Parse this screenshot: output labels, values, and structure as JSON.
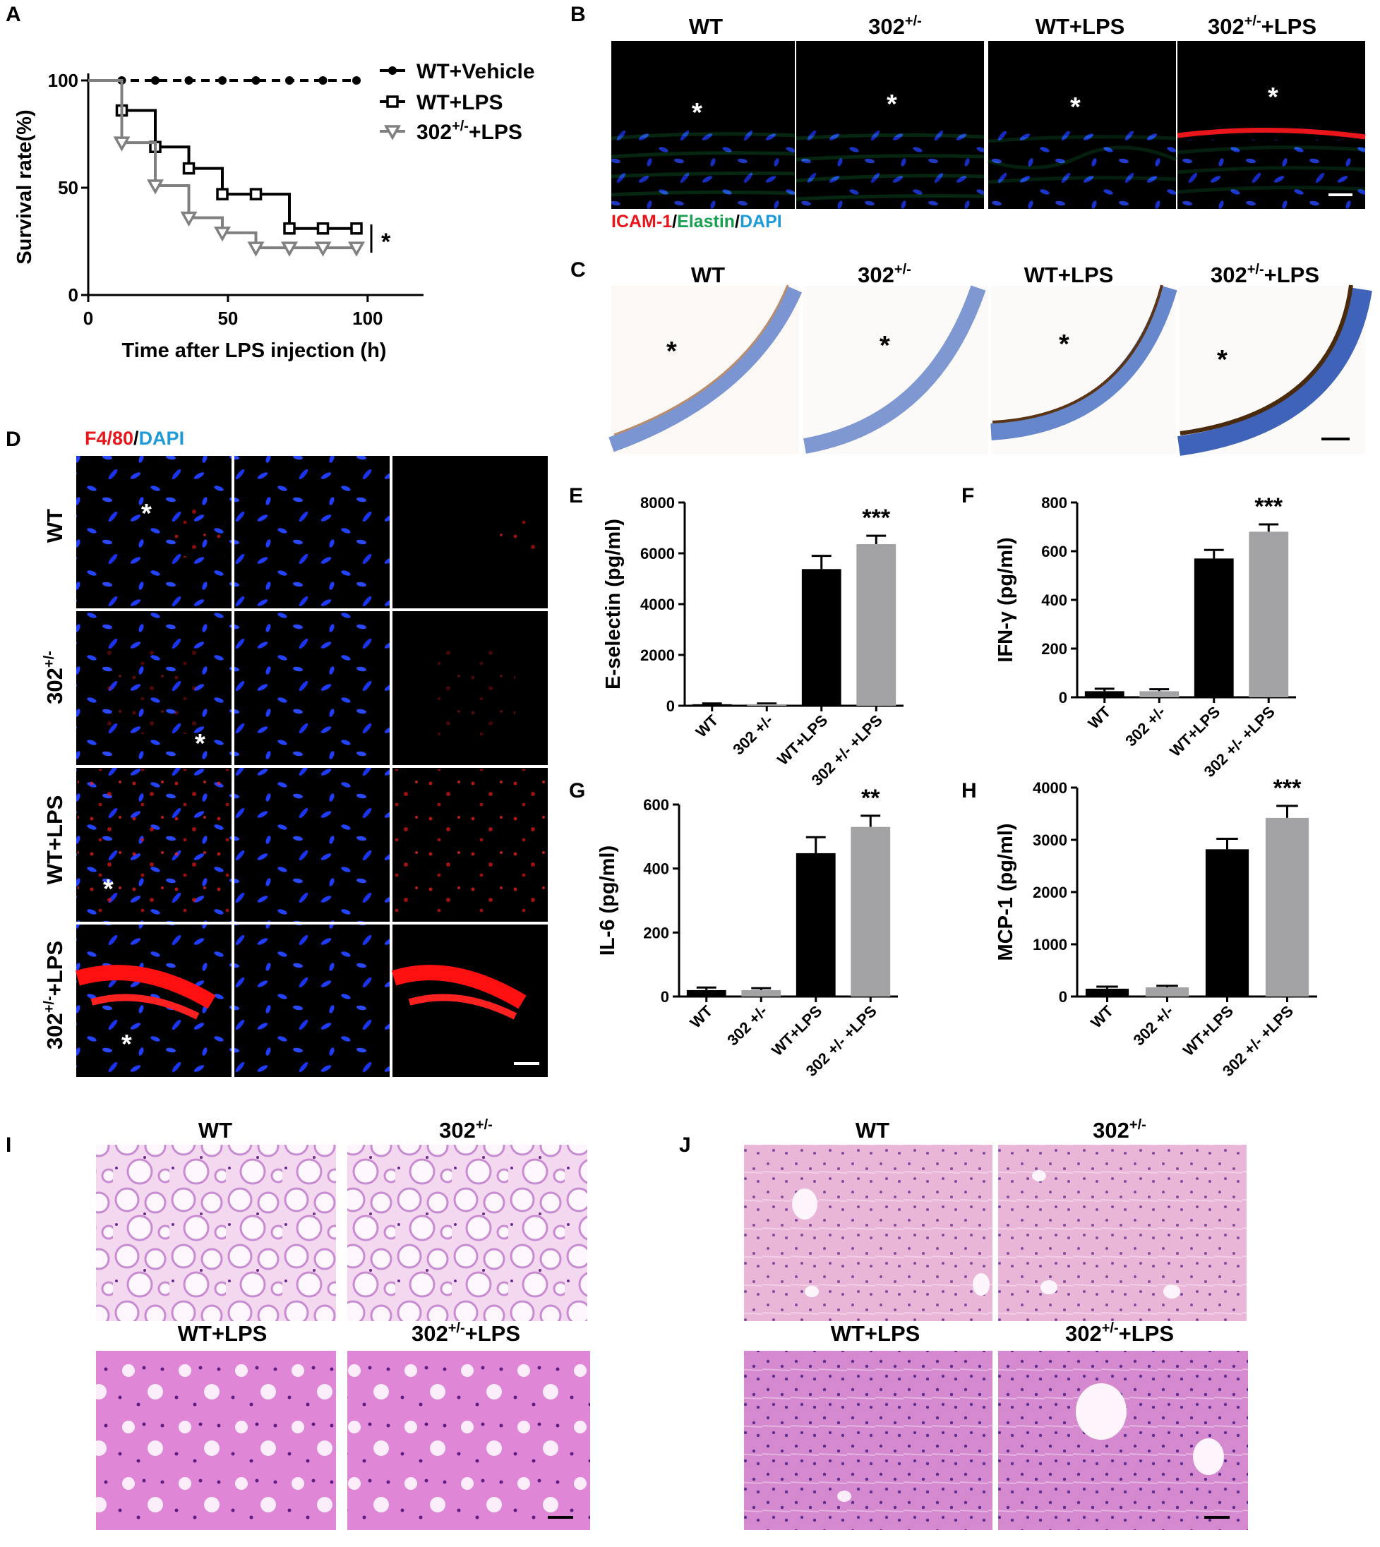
{
  "panels": {
    "A": {
      "letter": "A",
      "sig": "*",
      "chart_data": {
        "type": "line",
        "xlabel": "Time after LPS injection (h)",
        "ylabel": "Survival rate(%)",
        "xlim": [
          0,
          120
        ],
        "ylim": [
          0,
          100
        ],
        "xticks": [
          "0",
          "50",
          "100"
        ],
        "yticks": [
          "0",
          "50",
          "100"
        ],
        "legend_position": "top-right",
        "series": [
          {
            "name": "WT+Vehicle",
            "color": "#000000",
            "style": "dashed",
            "marker": "circle",
            "x": [
              0,
              12,
              24,
              36,
              48,
              60,
              72,
              84,
              96
            ],
            "y": [
              100,
              100,
              100,
              100,
              100,
              100,
              100,
              100,
              100
            ]
          },
          {
            "name": "WT+LPS",
            "color": "#000000",
            "style": "step",
            "marker": "square",
            "x": [
              0,
              12,
              24,
              36,
              48,
              60,
              72,
              84,
              96
            ],
            "y": [
              100,
              86,
              69,
              59,
              47,
              47,
              31,
              31,
              31
            ]
          },
          {
            "name": "302",
            "name_sup": "+/-",
            "name_suffix": "+LPS",
            "color": "#808080",
            "style": "step",
            "marker": "triangle-down",
            "x": [
              0,
              12,
              24,
              36,
              48,
              60,
              72,
              84,
              96
            ],
            "y": [
              100,
              71,
              51,
              36,
              29,
              22,
              22,
              22,
              22
            ]
          }
        ]
      }
    },
    "B": {
      "letter": "B",
      "labels": [
        {
          "main": "WT",
          "sup": ""
        },
        {
          "main": "302",
          "sup": "+/-"
        },
        {
          "main": "WT+LPS",
          "sup": ""
        },
        {
          "main": "302",
          "sup": "+/-",
          "suffix": "+LPS"
        }
      ],
      "stain": {
        "icam": "ICAM-1",
        "sep1": "/",
        "elastin": "Elastin",
        "sep2": "/",
        "dapi": "DAPI"
      },
      "asterisk": "*"
    },
    "C": {
      "letter": "C",
      "labels": [
        {
          "main": "WT",
          "sup": ""
        },
        {
          "main": "302",
          "sup": "+/-"
        },
        {
          "main": "WT+LPS",
          "sup": ""
        },
        {
          "main": "302",
          "sup": "+/-",
          "suffix": "+LPS"
        }
      ],
      "asterisk": "*"
    },
    "D": {
      "letter": "D",
      "stain": {
        "f480": "F4/80",
        "sep": "/",
        "dapi": "DAPI"
      },
      "rows": [
        {
          "main": "WT",
          "sup": ""
        },
        {
          "main": "302",
          "sup": "+/-"
        },
        {
          "main": "WT+LPS",
          "sup": ""
        },
        {
          "main": "302",
          "sup": "+/-",
          "suffix": "+LPS"
        }
      ],
      "asterisk": "*"
    },
    "E": {
      "letter": "E",
      "sig": "***",
      "chart_data": {
        "type": "bar",
        "ylabel": "E-selectin (pg/ml)",
        "ylim": [
          0,
          8000
        ],
        "yticks": [
          "0",
          "2000",
          "4000",
          "6000",
          "8000"
        ],
        "categories": [
          "WT",
          "302 +/-",
          "WT+LPS",
          "302 +/- +LPS"
        ],
        "values": [
          60,
          60,
          5380,
          6360
        ],
        "errors": [
          30,
          30,
          520,
          330
        ]
      }
    },
    "F": {
      "letter": "F",
      "sig": "***",
      "chart_data": {
        "type": "bar",
        "ylabel": "IFN-γ (pg/ml)",
        "ylim": [
          0,
          800
        ],
        "yticks": [
          "0",
          "200",
          "400",
          "600",
          "800"
        ],
        "categories": [
          "WT",
          "302 +/-",
          "WT+LPS",
          "302 +/- +LPS"
        ],
        "values": [
          25,
          25,
          570,
          680
        ],
        "errors": [
          10,
          8,
          35,
          30
        ]
      }
    },
    "G": {
      "letter": "G",
      "sig": "**",
      "chart_data": {
        "type": "bar",
        "ylabel": "IL-6 (pg/ml)",
        "ylim": [
          0,
          600
        ],
        "yticks": [
          "0",
          "200",
          "400",
          "600"
        ],
        "categories": [
          "WT",
          "302 +/-",
          "WT+LPS",
          "302 +/- +LPS"
        ],
        "values": [
          20,
          20,
          448,
          530
        ],
        "errors": [
          8,
          6,
          50,
          35
        ]
      }
    },
    "H": {
      "letter": "H",
      "sig": "***",
      "chart_data": {
        "type": "bar",
        "ylabel": "MCP-1 (pg/ml)",
        "ylim": [
          0,
          4000
        ],
        "yticks": [
          "0",
          "1000",
          "2000",
          "3000",
          "4000"
        ],
        "categories": [
          "WT",
          "302 +/-",
          "WT+LPS",
          "302 +/- +LPS"
        ],
        "values": [
          150,
          175,
          2820,
          3420
        ],
        "errors": [
          40,
          30,
          200,
          230
        ]
      }
    },
    "I": {
      "letter": "I",
      "labels": [
        {
          "main": "WT",
          "sup": ""
        },
        {
          "main": "302",
          "sup": "+/-"
        },
        {
          "main": "WT+LPS",
          "sup": ""
        },
        {
          "main": "302",
          "sup": "+/-",
          "suffix": "+LPS"
        }
      ]
    },
    "J": {
      "letter": "J",
      "labels": [
        {
          "main": "WT",
          "sup": ""
        },
        {
          "main": "302",
          "sup": "+/-"
        },
        {
          "main": "WT+LPS",
          "sup": ""
        },
        {
          "main": "302",
          "sup": "+/-",
          "suffix": "+LPS"
        }
      ]
    }
  },
  "colors": {
    "black_bar": "#000000",
    "gray_bar": "#a3a3a6",
    "icam_red": "#e8161b",
    "elastin_green": "#1aa051",
    "dapi_blue": "#1f9ad8",
    "he_pink": "#e6b3e0",
    "he_purple": "#9a4bb0",
    "ihc_blue": "#6f8fcf",
    "ihc_brown": "#6b3a12"
  }
}
